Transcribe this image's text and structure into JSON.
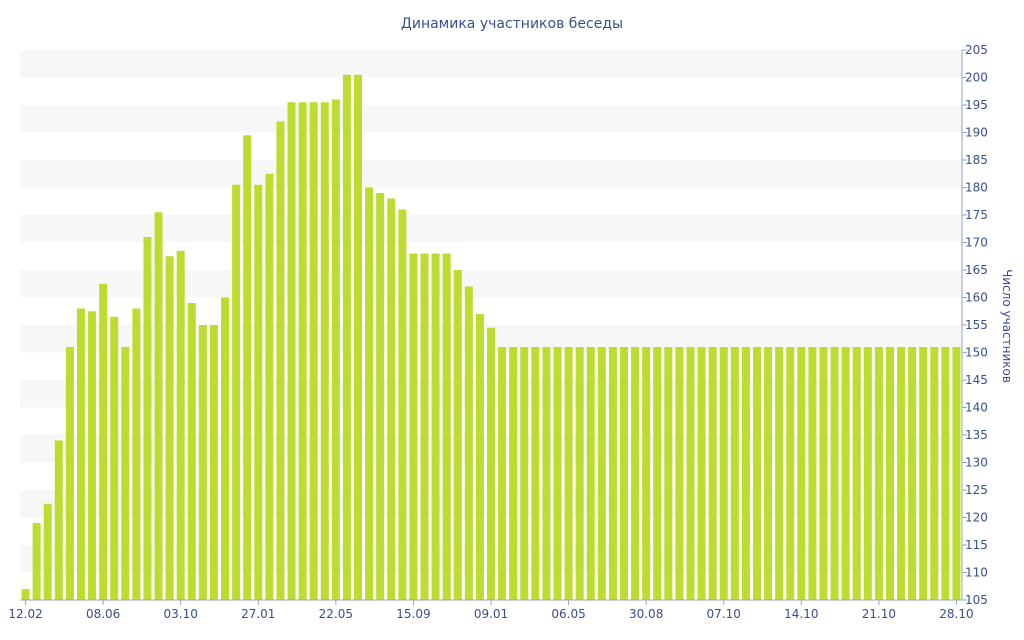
{
  "chart_data": {
    "type": "bar",
    "title": "Динамика участников беседы",
    "xlabel": "",
    "ylabel": "Число участников",
    "ylim": [
      105,
      205
    ],
    "y_ticks": [
      105,
      110,
      115,
      120,
      125,
      130,
      135,
      140,
      145,
      150,
      155,
      160,
      165,
      170,
      175,
      180,
      185,
      190,
      195,
      200,
      205
    ],
    "x_tick_labels": [
      "12.02",
      "08.06",
      "03.10",
      "27.01",
      "22.05",
      "15.09",
      "09.01",
      "06.05",
      "30.08",
      "07.10",
      "14.10",
      "21.10",
      "28.10"
    ],
    "x_tick_positions": [
      0,
      7,
      14,
      21,
      28,
      35,
      42,
      49,
      56,
      63,
      70,
      77,
      84
    ],
    "values": [
      107,
      119,
      122.5,
      134,
      151,
      158,
      157.5,
      162.5,
      156.5,
      151,
      158,
      171,
      175.5,
      167.5,
      168.5,
      159,
      155,
      155,
      160,
      180.5,
      189.5,
      180.5,
      182.5,
      192,
      195.5,
      195.5,
      195.5,
      195.5,
      196,
      200.5,
      200.5,
      180,
      179,
      178,
      176,
      168,
      168,
      168,
      168,
      165,
      162,
      157,
      154.5,
      151,
      151,
      151,
      151,
      151,
      151,
      151,
      151,
      151,
      151,
      151,
      151,
      151,
      151,
      151,
      151,
      151,
      151,
      151,
      151,
      151,
      151,
      151,
      151,
      151,
      151,
      151,
      151,
      151,
      151,
      151,
      151,
      151,
      151,
      151,
      151,
      151,
      151,
      151,
      151,
      151,
      151
    ],
    "bar_color": "#bcdc2f",
    "band_color": "#f7f7f7",
    "text_color": "#3b4e8c",
    "grid": "alternating horizontal bands",
    "y_axis_side": "right"
  }
}
